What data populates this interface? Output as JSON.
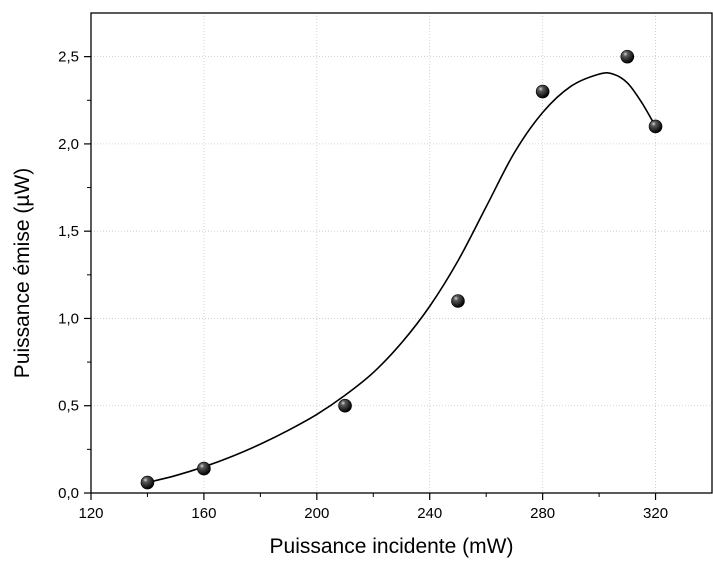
{
  "chart_data": {
    "type": "scatter",
    "xlabel": "Puissance incidente (mW)",
    "ylabel": "Puissance émise (µW)",
    "xlim": [
      120,
      340
    ],
    "ylim": [
      0,
      2.75
    ],
    "xticks": [
      120,
      160,
      200,
      240,
      280,
      320
    ],
    "xtick_labels": [
      "120",
      "160",
      "200",
      "240",
      "280",
      "320"
    ],
    "yticks": [
      0,
      0.5,
      1.0,
      1.5,
      2.0,
      2.5
    ],
    "ytick_labels": [
      "0,0",
      "0,5",
      "1,0",
      "1,5",
      "2,0",
      "2,5"
    ],
    "grid": true,
    "legend": "none",
    "series": [
      {
        "kind": "points",
        "marker": "sphere",
        "color": "#000000",
        "x": [
          140,
          160,
          210,
          250,
          280,
          310,
          320
        ],
        "y": [
          0.06,
          0.14,
          0.5,
          1.1,
          2.3,
          2.5,
          2.1
        ]
      },
      {
        "kind": "fit-curve",
        "color": "#000000",
        "x": [
          140,
          150,
          160,
          170,
          180,
          190,
          200,
          210,
          220,
          230,
          240,
          250,
          260,
          270,
          280,
          290,
          300,
          305,
          310,
          315,
          320
        ],
        "y": [
          0.06,
          0.1,
          0.15,
          0.21,
          0.28,
          0.36,
          0.45,
          0.56,
          0.69,
          0.86,
          1.07,
          1.33,
          1.64,
          1.95,
          2.18,
          2.33,
          2.4,
          2.4,
          2.35,
          2.24,
          2.1
        ]
      }
    ]
  }
}
